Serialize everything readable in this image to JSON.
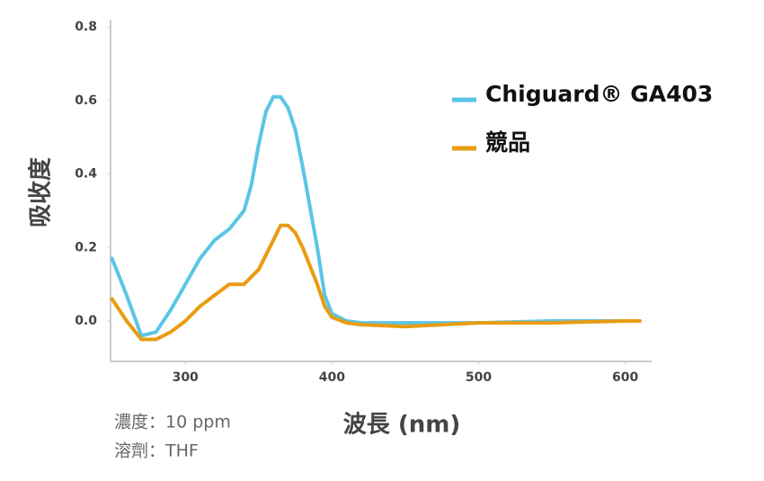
{
  "chart_data": {
    "type": "line",
    "xlabel": "波長 (nm)",
    "ylabel": "吸收度",
    "notes": [
      "濃度：10 ppm",
      "溶劑：THF"
    ],
    "x": [
      250,
      260,
      270,
      280,
      290,
      300,
      310,
      320,
      330,
      340,
      345,
      350,
      355,
      360,
      365,
      370,
      375,
      380,
      390,
      395,
      400,
      410,
      420,
      450,
      500,
      550,
      600,
      610
    ],
    "series": [
      {
        "name": "Chiguard® GA403",
        "color": "#5bc5e6",
        "values": [
          0.17,
          0.07,
          -0.04,
          -0.03,
          0.03,
          0.1,
          0.17,
          0.22,
          0.25,
          0.3,
          0.37,
          0.48,
          0.57,
          0.61,
          0.61,
          0.58,
          0.52,
          0.42,
          0.2,
          0.07,
          0.02,
          0,
          -0.005,
          -0.005,
          -0.005,
          0,
          0,
          null
        ]
      },
      {
        "name": "競品",
        "color": "#e89c12",
        "values": [
          0.06,
          0,
          -0.05,
          -0.05,
          -0.03,
          0,
          0.04,
          0.07,
          0.1,
          0.1,
          0.12,
          0.14,
          0.18,
          0.22,
          0.26,
          0.26,
          0.24,
          0.2,
          0.1,
          0.04,
          0.01,
          -0.005,
          -0.01,
          -0.015,
          -0.005,
          -0.005,
          0,
          0
        ]
      }
    ],
    "xlim": [
      249,
      618
    ],
    "ylim": [
      -0.11,
      0.8
    ],
    "xticks": [
      300,
      400,
      500,
      600
    ],
    "yticks": [
      {
        "value": 0,
        "label": "0.0"
      },
      0.2,
      0.4,
      0.6,
      0.8
    ],
    "grid": false,
    "legend": "upper right"
  }
}
